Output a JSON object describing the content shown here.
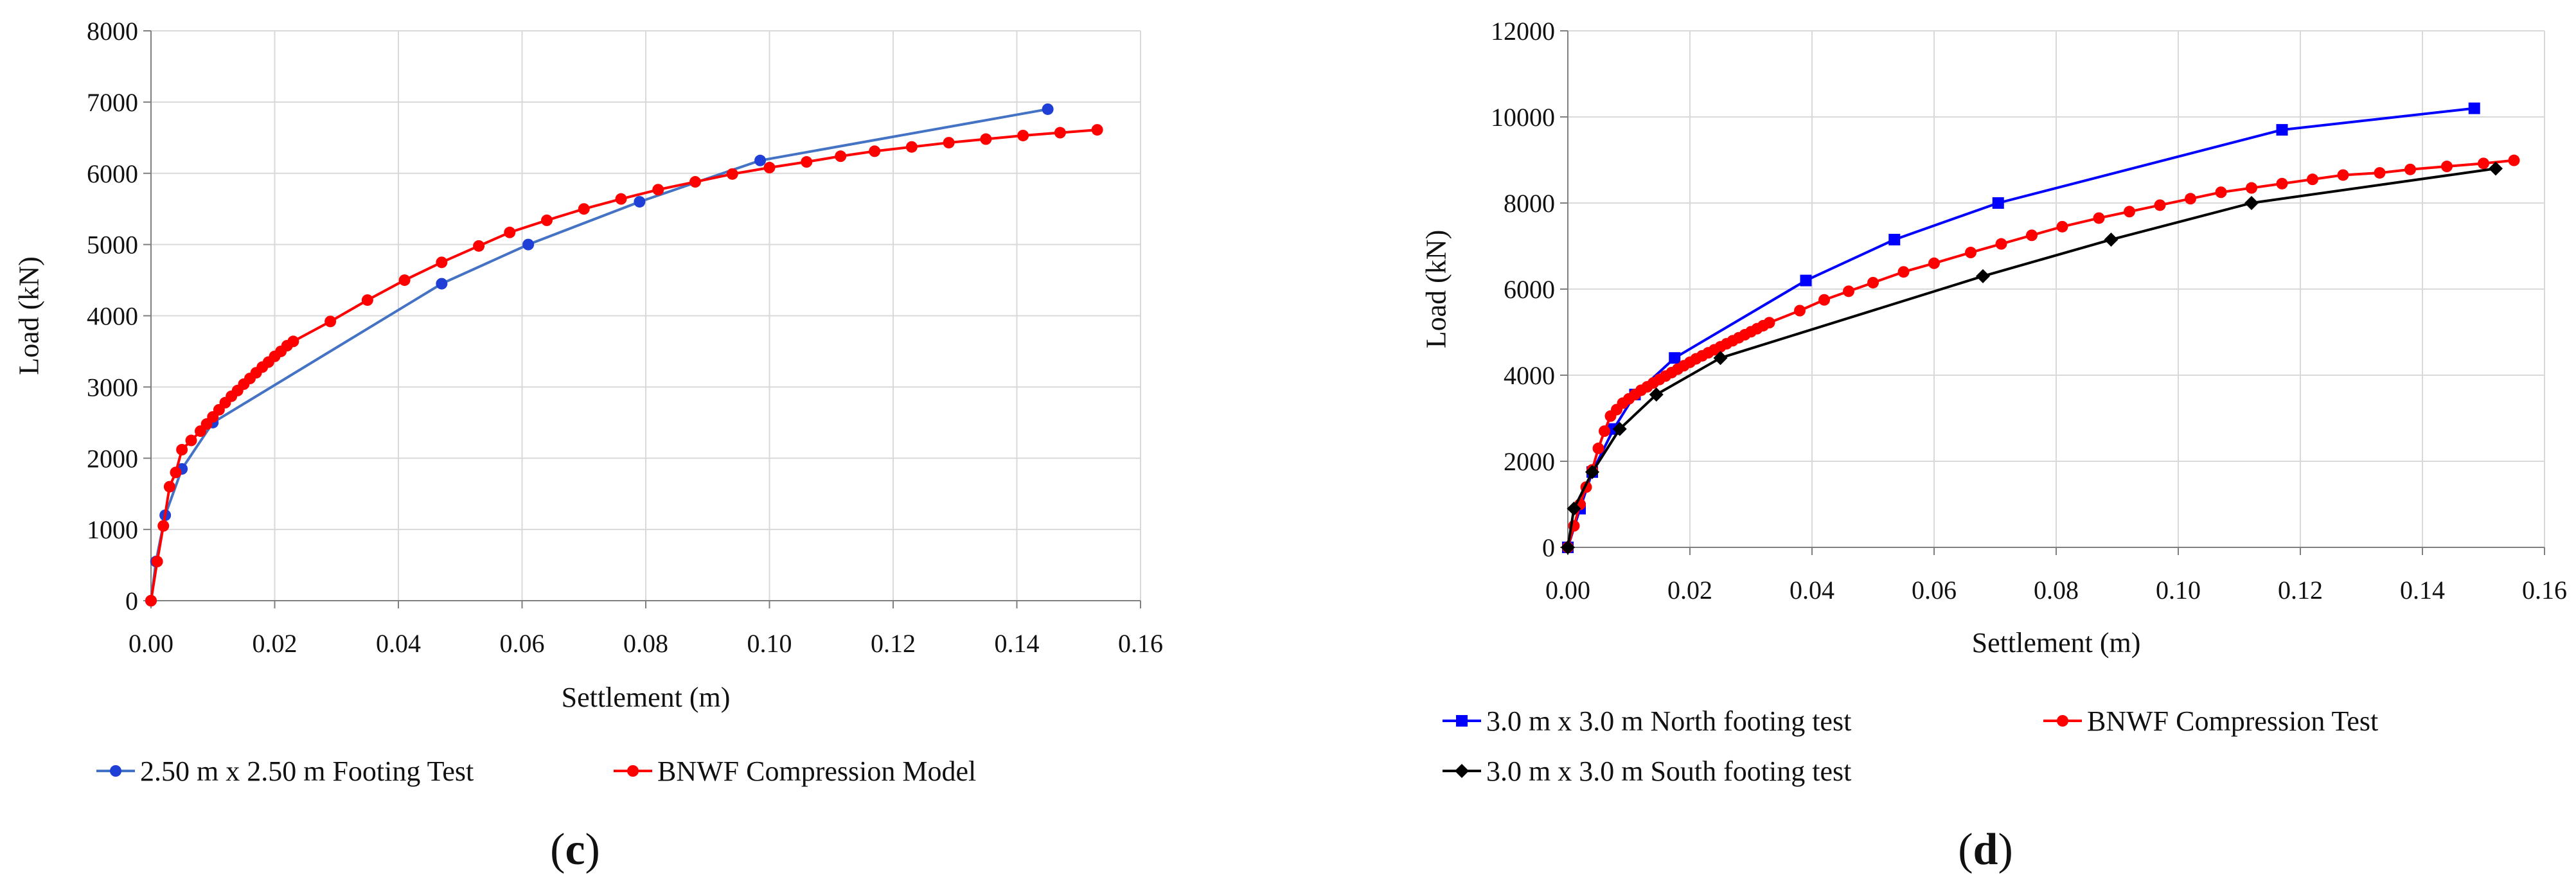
{
  "chart_data": [
    {
      "type": "line",
      "caption": {
        "open": "(",
        "letter": "c",
        "close": ")"
      },
      "xlabel": "Settlement (m)",
      "ylabel": "Load (kN)",
      "xlim": [
        0,
        0.16
      ],
      "ylim": [
        0,
        8000
      ],
      "xticks": [
        "0.00",
        "0.02",
        "0.04",
        "0.06",
        "0.08",
        "0.10",
        "0.12",
        "0.14",
        "0.16"
      ],
      "yticks": [
        "0",
        "1000",
        "2000",
        "3000",
        "4000",
        "5000",
        "6000",
        "7000",
        "8000"
      ],
      "legend_rows": [
        [
          0,
          1
        ]
      ],
      "series": [
        {
          "name": "2.50 m x 2.50 m Footing Test",
          "line_color": "#4472c4",
          "marker_color": "#1f3fd6",
          "marker": "circle",
          "x": [
            0.0,
            0.0008,
            0.0023,
            0.005,
            0.01,
            0.047,
            0.061,
            0.079,
            0.0985,
            0.145
          ],
          "y": [
            0,
            550,
            1200,
            1850,
            2500,
            4450,
            5000,
            5600,
            6180,
            6900
          ]
        },
        {
          "name": "BNWF Compression Model",
          "line_color": "#ff0000",
          "marker_color": "#ff0000",
          "marker": "circle",
          "x": [
            0.0,
            0.001,
            0.002,
            0.003,
            0.004,
            0.005,
            0.0065,
            0.008,
            0.009,
            0.01,
            0.011,
            0.012,
            0.013,
            0.014,
            0.015,
            0.016,
            0.017,
            0.018,
            0.019,
            0.02,
            0.021,
            0.022,
            0.023,
            0.029,
            0.035,
            0.041,
            0.047,
            0.053,
            0.058,
            0.064,
            0.07,
            0.076,
            0.082,
            0.088,
            0.094,
            0.1,
            0.106,
            0.1115,
            0.117,
            0.123,
            0.129,
            0.135,
            0.141,
            0.147,
            0.153
          ],
          "y": [
            0,
            550,
            1050,
            1600,
            1800,
            2120,
            2250,
            2380,
            2480,
            2580,
            2680,
            2780,
            2870,
            2950,
            3040,
            3120,
            3200,
            3280,
            3350,
            3430,
            3500,
            3580,
            3640,
            3920,
            4220,
            4500,
            4750,
            4980,
            5170,
            5340,
            5500,
            5640,
            5770,
            5880,
            5990,
            6080,
            6160,
            6240,
            6310,
            6370,
            6430,
            6480,
            6530,
            6570,
            6610
          ]
        }
      ]
    },
    {
      "type": "line",
      "caption": {
        "open": "(",
        "letter": "d",
        "close": ")"
      },
      "xlabel": "Settlement (m)",
      "ylabel": "Load (kN)",
      "xlim": [
        0,
        0.16
      ],
      "ylim": [
        0,
        12000
      ],
      "xticks": [
        "0.00",
        "0.02",
        "0.04",
        "0.06",
        "0.08",
        "0.10",
        "0.12",
        "0.14",
        "0.16"
      ],
      "yticks": [
        "0",
        "2000",
        "4000",
        "6000",
        "8000",
        "10000",
        "12000"
      ],
      "legend_rows": [
        [
          0,
          1
        ],
        [
          2
        ]
      ],
      "series": [
        {
          "name": "3.0 m x 3.0 m North footing test",
          "line_color": "#0000ff",
          "marker_color": "#0000ff",
          "marker": "square",
          "x": [
            0.0,
            0.002,
            0.004,
            0.0075,
            0.011,
            0.0175,
            0.039,
            0.0535,
            0.0705,
            0.117,
            0.1485
          ],
          "y": [
            0,
            900,
            1750,
            2750,
            3550,
            4400,
            6200,
            7150,
            8000,
            9700,
            10200
          ]
        },
        {
          "name": "BNWF Compression Test",
          "line_color": "#ff0000",
          "marker_color": "#ff0000",
          "marker": "circle",
          "x": [
            0.0,
            0.001,
            0.002,
            0.003,
            0.004,
            0.005,
            0.006,
            0.007,
            0.008,
            0.009,
            0.01,
            0.011,
            0.012,
            0.013,
            0.014,
            0.015,
            0.016,
            0.017,
            0.018,
            0.019,
            0.02,
            0.021,
            0.022,
            0.023,
            0.024,
            0.025,
            0.026,
            0.027,
            0.028,
            0.029,
            0.03,
            0.031,
            0.032,
            0.033,
            0.038,
            0.042,
            0.046,
            0.05,
            0.055,
            0.06,
            0.066,
            0.071,
            0.076,
            0.081,
            0.087,
            0.092,
            0.097,
            0.102,
            0.107,
            0.112,
            0.117,
            0.122,
            0.127,
            0.133,
            0.138,
            0.144,
            0.15,
            0.155
          ],
          "y": [
            0,
            500,
            1000,
            1400,
            1800,
            2300,
            2700,
            3050,
            3200,
            3350,
            3450,
            3550,
            3650,
            3730,
            3820,
            3900,
            3980,
            4060,
            4140,
            4220,
            4300,
            4380,
            4450,
            4520,
            4590,
            4660,
            4730,
            4800,
            4870,
            4940,
            5010,
            5080,
            5150,
            5220,
            5500,
            5750,
            5950,
            6150,
            6400,
            6600,
            6850,
            7050,
            7250,
            7450,
            7650,
            7800,
            7950,
            8100,
            8250,
            8350,
            8450,
            8550,
            8650,
            8700,
            8780,
            8850,
            8920,
            8990
          ]
        },
        {
          "name": "3.0 m x 3.0 m South footing test",
          "line_color": "#000000",
          "marker_color": "#000000",
          "marker": "diamond",
          "x": [
            0.0,
            0.001,
            0.004,
            0.0085,
            0.0145,
            0.025,
            0.068,
            0.089,
            0.112,
            0.152
          ],
          "y": [
            0,
            900,
            1750,
            2750,
            3550,
            4400,
            6300,
            7150,
            8000,
            8800
          ]
        }
      ]
    }
  ]
}
